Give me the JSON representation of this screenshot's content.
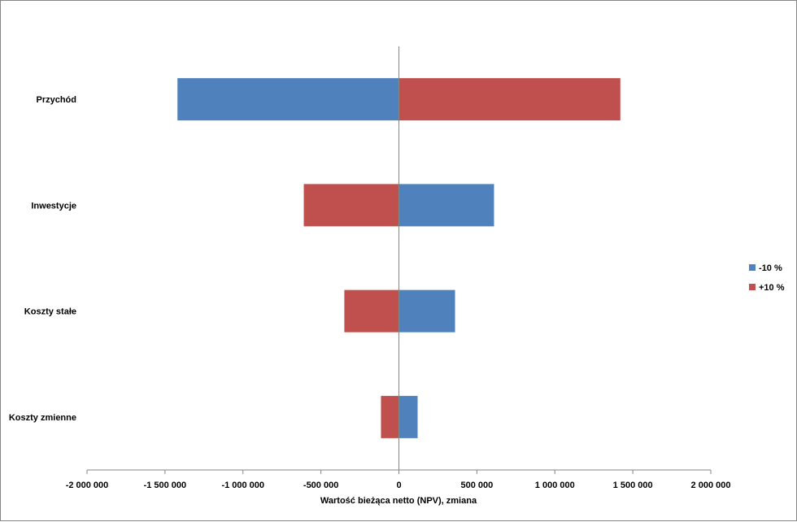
{
  "chart_data": {
    "type": "bar",
    "orientation": "horizontal",
    "categories": [
      "Przychód",
      "Inwestycje",
      "Koszty stałe",
      "Koszty zmienne"
    ],
    "series": [
      {
        "name": "-10 %",
        "color": "#4F81BD",
        "values": [
          -1420000,
          610000,
          360000,
          120000
        ]
      },
      {
        "name": "+10 %",
        "color": "#C0504D",
        "values": [
          1420000,
          -610000,
          -350000,
          -115000
        ]
      }
    ],
    "xlabel": "Wartość bieżąca netto (NPV), zmiana",
    "xlim": [
      -2000000,
      2000000
    ],
    "x_ticks": [
      -2000000,
      -1500000,
      -1000000,
      -500000,
      0,
      500000,
      1000000,
      1500000,
      2000000
    ],
    "x_tick_labels": [
      "-2 000 000",
      "-1 500 000",
      "-1 000 000",
      "-500 000",
      "0",
      "500 000",
      "1 000 000",
      "1 500 000",
      "2 000 000"
    ],
    "grid": false,
    "legend_position": "right"
  }
}
